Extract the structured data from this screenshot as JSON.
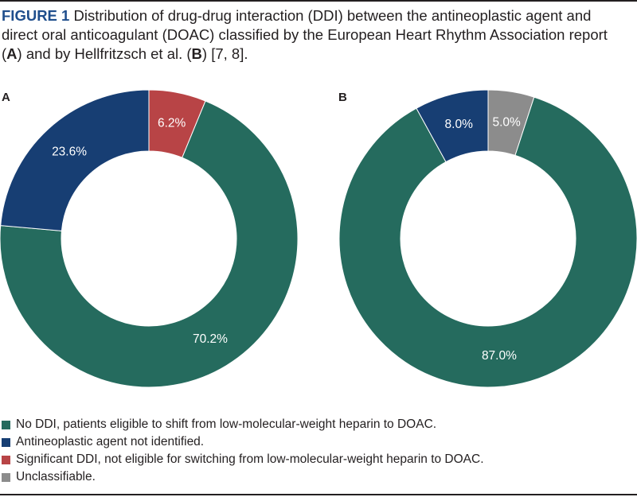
{
  "caption": {
    "figure_label": "FIGURE 1",
    "part1": " Distribution of drug-drug interaction (DDI) between the antineoplastic agent and direct oral anticoagulant (DOAC) classified by the European Heart Rhythm Association report (",
    "bold_a": "A",
    "part2": ") and by Hellfritzsch et al. (",
    "bold_b": "B",
    "part3": ") [7, 8]."
  },
  "colors": {
    "no_ddi": "#256b5e",
    "not_identified": "#173e73",
    "significant_ddi": "#b84446",
    "unclassifiable": "#8c8c8c",
    "label_text": "#ffffff"
  },
  "legend": [
    {
      "key": "no_ddi",
      "label": "No DDI, patients eligible to shift from low-molecular-weight heparin to DOAC."
    },
    {
      "key": "not_identified",
      "label": "Antineoplastic agent not identified."
    },
    {
      "key": "significant_ddi",
      "label": "Significant DDI, not eligible for switching from low-molecular-weight heparin to DOAC."
    },
    {
      "key": "unclassifiable",
      "label": "Unclassifiable."
    }
  ],
  "chart_data": [
    {
      "type": "pie",
      "panel": "A",
      "title": "",
      "slices": [
        {
          "key": "significant_ddi",
          "value": 6.2,
          "label": "6.2%"
        },
        {
          "key": "no_ddi",
          "value": 70.2,
          "label": "70.2%"
        },
        {
          "key": "not_identified",
          "value": 23.6,
          "label": "23.6%"
        }
      ]
    },
    {
      "type": "pie",
      "panel": "B",
      "title": "",
      "slices": [
        {
          "key": "unclassifiable",
          "value": 5.0,
          "label": "5.0%"
        },
        {
          "key": "no_ddi",
          "value": 87.0,
          "label": "87.0%"
        },
        {
          "key": "not_identified",
          "value": 8.0,
          "label": "8.0%"
        }
      ]
    }
  ]
}
